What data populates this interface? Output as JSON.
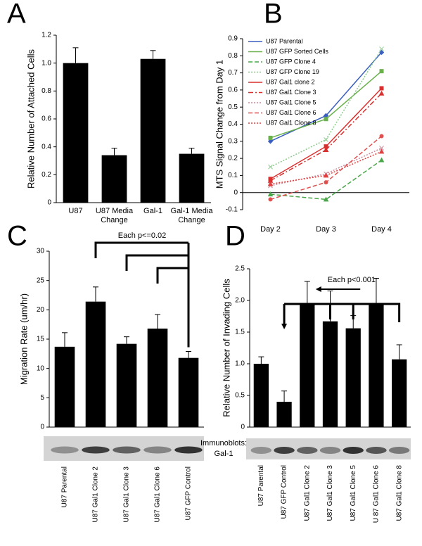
{
  "chart_data": [
    {
      "type": "bar",
      "panel": "A",
      "ylabel": "Relative Number of Attached Cells",
      "categories": [
        "U87",
        "U87 Media Change",
        "Gal-1",
        "Gal-1 Media Change"
      ],
      "values": [
        1.0,
        0.34,
        1.03,
        0.35
      ],
      "errors": [
        0.11,
        0.05,
        0.06,
        0.04
      ],
      "color": "#000000",
      "ylim": [
        0,
        1.2
      ],
      "yticks": [
        0,
        0.2,
        0.4,
        0.6,
        0.8,
        {
          "value": 1,
          "label": "1.0"
        },
        1.2
      ]
    },
    {
      "type": "line",
      "panel": "B",
      "ylabel": "MTS Signal Change from Day 1",
      "categories": [
        "Day 2",
        "Day 3",
        "Day 4"
      ],
      "ylim": [
        -0.1,
        0.9
      ],
      "yticks": [
        -0.1,
        0,
        0.1,
        0.2,
        0.3,
        0.4,
        0.5,
        0.6,
        0.7,
        0.8,
        0.9
      ],
      "series": [
        {
          "name": "U87 Parental",
          "color": "#3a5fbf",
          "dash": "solid",
          "marker": "diamond",
          "values": [
            0.3,
            0.45,
            0.82
          ]
        },
        {
          "name": "U87 GFP Sorted Cells",
          "color": "#6ab04c",
          "dash": "solid",
          "marker": "square",
          "values": [
            0.32,
            0.43,
            0.71
          ]
        },
        {
          "name": "U87 GFP Clone 4",
          "color": "#4aa64a",
          "dash": "dashed",
          "marker": "triangle",
          "values": [
            -0.01,
            -0.04,
            0.19
          ]
        },
        {
          "name": "U87 GFP Clone 19",
          "color": "#8cc88c",
          "dash": "dotted",
          "marker": "x",
          "values": [
            0.15,
            0.31,
            0.84
          ]
        },
        {
          "name": "U87 Gal1 clone 2",
          "color": "#d9302f",
          "dash": "solid",
          "marker": "square",
          "values": [
            0.08,
            0.27,
            0.61
          ]
        },
        {
          "name": "U87 Gal1 Clone 3",
          "color": "#d9302f",
          "dash": "dashdot",
          "marker": "triangle",
          "values": [
            0.07,
            0.25,
            0.58
          ]
        },
        {
          "name": "U87 Gal1 Clone 5",
          "color": "#c98a9a",
          "dash": "dotted",
          "marker": "x",
          "values": [
            0.04,
            0.11,
            0.26
          ]
        },
        {
          "name": "U87 Gal1 Clone 6",
          "color": "#e05050",
          "dash": "dashed",
          "marker": "circle",
          "values": [
            -0.04,
            0.06,
            0.33
          ]
        },
        {
          "name": "U87 Gal1 Clone 8",
          "color": "#e04040",
          "dash": "dotted",
          "marker": "triangle",
          "values": [
            0.05,
            0.1,
            0.24
          ]
        }
      ]
    },
    {
      "type": "bar",
      "panel": "C",
      "ylabel": "Migration Rate (um/hr)",
      "annotation": "Each p<=0.02",
      "categories": [
        "U87 Parental",
        "U87 Gal1 Clone 2",
        "U87 Gal1 Clone 3",
        "U87 Gal1 Clone 6",
        "U87 GFP Control"
      ],
      "values": [
        13.7,
        21.4,
        14.2,
        16.8,
        11.8
      ],
      "errors": [
        2.4,
        2.5,
        1.2,
        2.4,
        1.1
      ],
      "color": "#000000",
      "ylim": [
        0,
        30
      ],
      "yticks": [
        0,
        5,
        10,
        15,
        20,
        25,
        30
      ]
    },
    {
      "type": "bar",
      "panel": "D",
      "ylabel": "Relative Number of Invading Cells",
      "annotation": "Each p<0.001",
      "blot_label": [
        "Immunoblots:",
        "Gal-1"
      ],
      "categories": [
        "U87 Parental",
        "U87 GFP Control",
        "U87 Gal1 Clone 2",
        "U87 Gal1 Clone 3",
        "U87 Gal1 Clone 5",
        "U 87 Gal1 Clone 6",
        "U87 Gal1 Clone 8"
      ],
      "values": [
        1.0,
        0.4,
        1.93,
        1.67,
        1.56,
        1.96,
        1.07
      ],
      "errors": [
        0.11,
        0.17,
        0.37,
        0.48,
        0.2,
        0.39,
        0.23
      ],
      "color": "#000000",
      "ylim": [
        0,
        2.5
      ],
      "yticks": [
        0,
        0.5,
        {
          "value": 1,
          "label": "1.0"
        },
        1.5,
        {
          "value": 2,
          "label": "2.0"
        },
        2.5
      ]
    }
  ]
}
